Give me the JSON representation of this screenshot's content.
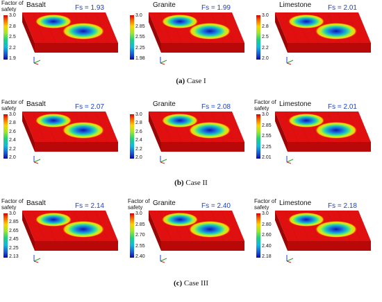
{
  "cases": [
    {
      "caption_letter": "(a)",
      "caption_text": " Case I",
      "panels": [
        {
          "rock": "Basalt",
          "fs": "Fs = 1.93",
          "cb_title": "Factor of safety",
          "ticks": [
            "3.0",
            "2.8",
            "2.5",
            "2.2",
            "1.9"
          ]
        },
        {
          "rock": "Granite",
          "fs": "Fs = 1.99",
          "cb_title": "",
          "ticks": [
            "3.0",
            "2.85",
            "2.55",
            "2.25",
            "1.98"
          ]
        },
        {
          "rock": "Limestone",
          "fs": "Fs = 2.01",
          "cb_title": "",
          "ticks": [
            "3.0",
            "2.8",
            "2.5",
            "2.2",
            "2.0"
          ]
        }
      ]
    },
    {
      "caption_letter": "(b)",
      "caption_text": " Case II",
      "panels": [
        {
          "rock": "Basalt",
          "fs": "Fs = 2.07",
          "cb_title": "Factor of safety",
          "ticks": [
            "3.0",
            "2.8",
            "2.6",
            "2.4",
            "2.2",
            "2.0"
          ]
        },
        {
          "rock": "Granite",
          "fs": "Fs = 2.08",
          "cb_title": "",
          "ticks": [
            "3.0",
            "2.8",
            "2.6",
            "2.4",
            "2.2",
            "2.0"
          ]
        },
        {
          "rock": "Limestone",
          "fs": "Fs = 2.01",
          "cb_title": "Factor of safety",
          "ticks": [
            "3.0",
            "2.85",
            "2.55",
            "2.25",
            "2.01"
          ]
        }
      ]
    },
    {
      "caption_letter": "(c)",
      "caption_text": " Case III",
      "panels": [
        {
          "rock": "Basalt",
          "fs": "Fs = 2.14",
          "cb_title": "Factor of safety",
          "ticks": [
            "3.0",
            "2.85",
            "2.65",
            "2.45",
            "2.25",
            "2.13"
          ]
        },
        {
          "rock": "Granite",
          "fs": "Fs = 2.40",
          "cb_title": "Factor of safety",
          "ticks": [
            "3.0",
            "2.85",
            "2.70",
            "2.55",
            "2.40"
          ]
        },
        {
          "rock": "Limestone",
          "fs": "Fs = 2.18",
          "cb_title": "Factor of safety",
          "ticks": [
            "3.0",
            "2.80",
            "2.60",
            "2.40",
            "2.18"
          ]
        }
      ]
    }
  ]
}
